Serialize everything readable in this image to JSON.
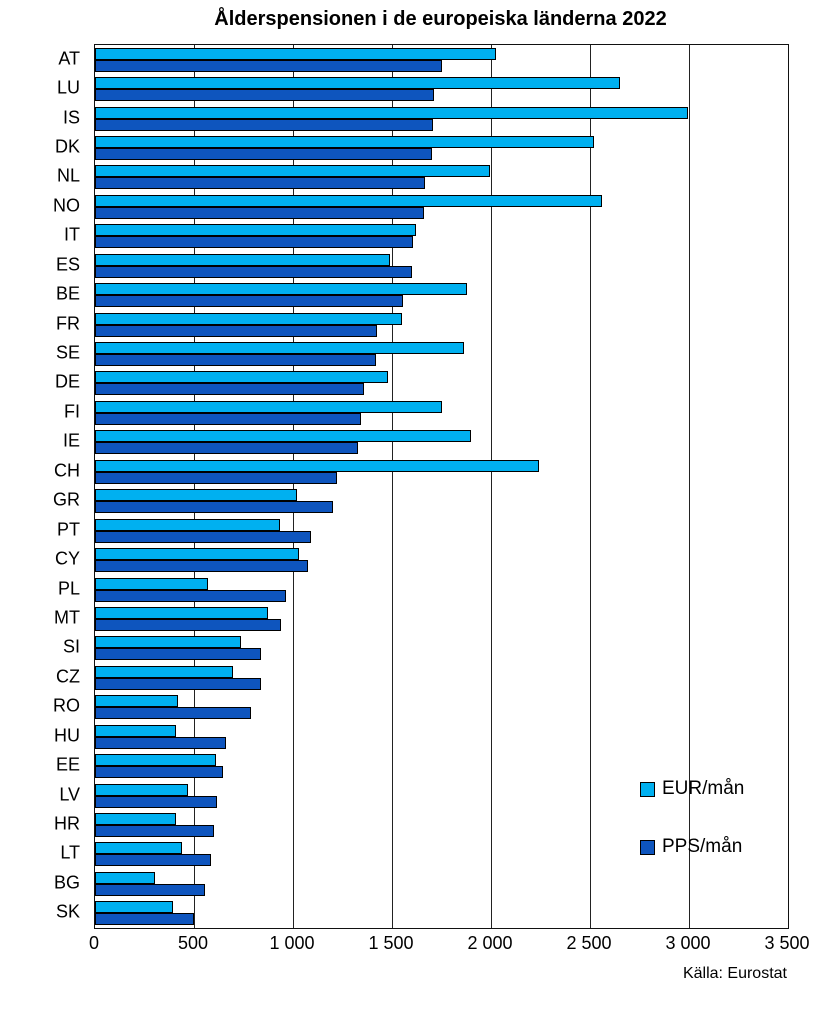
{
  "chart_data": {
    "type": "bar",
    "orientation": "horizontal",
    "title": "Ålderspensionen i de europeiska länderna 2022",
    "categories": [
      "AT",
      "LU",
      "IS",
      "DK",
      "NL",
      "NO",
      "IT",
      "ES",
      "BE",
      "FR",
      "SE",
      "DE",
      "FI",
      "IE",
      "CH",
      "GR",
      "PT",
      "CY",
      "PL",
      "MT",
      "SI",
      "CZ",
      "RO",
      "HU",
      "EE",
      "LV",
      "HR",
      "LT",
      "BG",
      "SK"
    ],
    "series": [
      {
        "name": "EUR/mån",
        "color": "#00B0F0",
        "values": [
          2025,
          2650,
          2995,
          2520,
          1995,
          2560,
          1620,
          1490,
          1880,
          1550,
          1865,
          1480,
          1750,
          1900,
          2240,
          1020,
          935,
          1030,
          570,
          875,
          735,
          695,
          420,
          410,
          610,
          470,
          410,
          440,
          305,
          395
        ]
      },
      {
        "name": "PPS/mån",
        "color": "#0E55BE",
        "values": [
          1750,
          1710,
          1705,
          1700,
          1665,
          1660,
          1605,
          1600,
          1555,
          1425,
          1420,
          1360,
          1345,
          1330,
          1220,
          1200,
          1090,
          1075,
          965,
          940,
          840,
          840,
          790,
          660,
          645,
          615,
          600,
          585,
          555,
          500
        ]
      }
    ],
    "xlim": [
      0,
      3500
    ],
    "x_ticks": [
      0,
      500,
      1000,
      1500,
      2000,
      2500,
      3000,
      3500
    ],
    "x_tick_labels": [
      "0",
      "500",
      "1 000",
      "1 500",
      "2 000",
      "2 500",
      "3 000",
      "3 500"
    ],
    "grid": "vertical",
    "legend_position": "inside-right",
    "source": "Källa: Eurostat"
  }
}
